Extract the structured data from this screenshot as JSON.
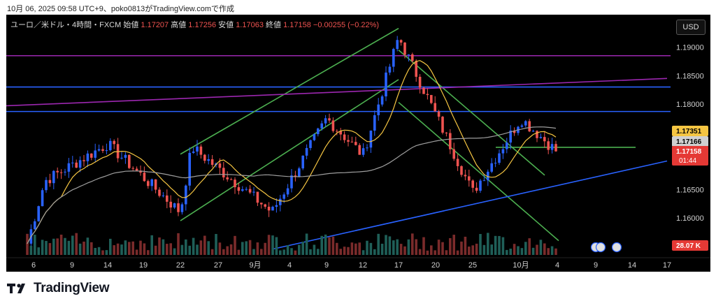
{
  "caption": "10月 06, 2025 09:58 UTC+9、poko0813がTradingView.comで作成",
  "header": {
    "symbol": "ユーロ／米ドル・4時間・FXCM",
    "open_label": "始値",
    "open": "1.17207",
    "high_label": "高値",
    "high": "1.17256",
    "low_label": "安値",
    "low": "1.17063",
    "close_label": "終値",
    "close": "1.17158",
    "change": "−0.00255 (−0.22%)"
  },
  "currency_button": "USD",
  "brand": "TradingView",
  "price_badges": {
    "ma_fast": "1.17351",
    "ma_slow": "1.17166",
    "last_price": "1.17158",
    "countdown": "01:44",
    "volume": "28.07 K"
  },
  "colors": {
    "background": "#000000",
    "up": "#2962ff",
    "down": "#ef5350",
    "channel": "#4caf50",
    "horizontal_blue": "#2962ff",
    "horizontal_purple": "#9c27b0",
    "ma_fast": "#f5c542",
    "ma_slow": "#9e9e9e"
  },
  "chart_data": {
    "type": "candlestick",
    "title": "ユーロ／米ドル・4時間・FXCM",
    "ylim": [
      1.1535,
      1.1935
    ],
    "y_ticks": [
      "1.19000",
      "1.18500",
      "1.18000",
      "1.16500",
      "1.16000"
    ],
    "x_ticks": [
      "6",
      "9",
      "14",
      "19",
      "22",
      "27",
      "9月",
      "4",
      "9",
      "12",
      "17",
      "20",
      "25",
      "10月",
      "4",
      "9",
      "14",
      "17"
    ],
    "last_price": 1.17158,
    "key_points": [
      {
        "date": "08-05",
        "price": 1.1555
      },
      {
        "date": "08-07",
        "price": 1.1665
      },
      {
        "date": "08-14",
        "price": 1.173
      },
      {
        "date": "08-22",
        "price": 1.161
      },
      {
        "date": "08-22b",
        "price": 1.1725
      },
      {
        "date": "09-03",
        "price": 1.161
      },
      {
        "date": "09-09",
        "price": 1.1775
      },
      {
        "date": "09-12",
        "price": 1.171
      },
      {
        "date": "09-17",
        "price": 1.1918
      },
      {
        "date": "09-25",
        "price": 1.1645
      },
      {
        "date": "10-01",
        "price": 1.1775
      },
      {
        "date": "10-04",
        "price": 1.17158
      }
    ],
    "horizontal_levels": [
      {
        "price": 1.1885,
        "color": "#9c27b0"
      },
      {
        "price": 1.183,
        "color": "#2962ff"
      },
      {
        "price": 1.1787,
        "color": "#2962ff"
      },
      {
        "price": 1.1724,
        "color": "#4caf50"
      }
    ],
    "trendlines": [
      {
        "from": [
          "08-22",
          1.1595
        ],
        "to": [
          "09-17",
          1.1843
        ],
        "color": "#4caf50"
      },
      {
        "from": [
          "08-22",
          1.1712
        ],
        "to": [
          "09-17",
          1.1933
        ],
        "color": "#4caf50"
      },
      {
        "from": [
          "09-17",
          1.1895
        ],
        "to": [
          "10-02",
          1.1675
        ],
        "color": "#4caf50"
      },
      {
        "from": [
          "09-17",
          1.1803
        ],
        "to": [
          "10-03",
          1.156
        ],
        "color": "#4caf50"
      },
      {
        "from": [
          "08-01",
          1.1797
        ],
        "to": [
          "10-17",
          1.1845
        ],
        "color": "#9c27b0"
      },
      {
        "from": [
          "09-03",
          1.1545
        ],
        "to": [
          "10-17",
          1.17
        ],
        "color": "#2962ff"
      }
    ]
  }
}
